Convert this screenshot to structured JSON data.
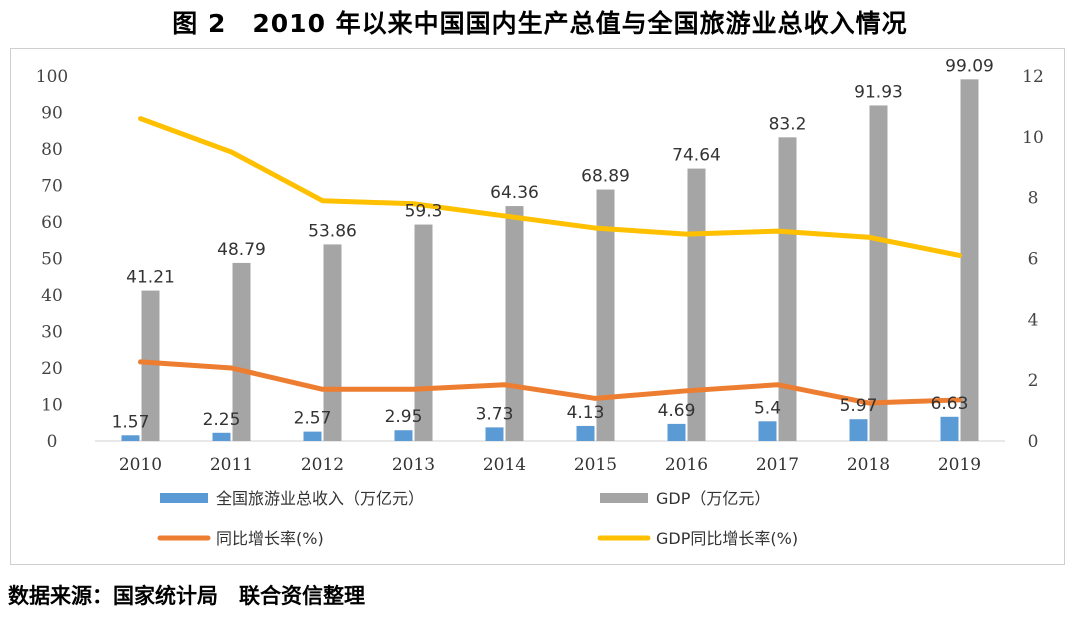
{
  "title": "图 2　2010 年以来中国国内生产总值与全国旅游业总收入情况",
  "source_note": "数据来源：国家统计局　联合资信整理",
  "chart_data": {
    "type": "bar",
    "categories": [
      "2010",
      "2011",
      "2012",
      "2013",
      "2014",
      "2015",
      "2016",
      "2017",
      "2018",
      "2019"
    ],
    "series": [
      {
        "name": "全国旅游业总收入（万亿元）",
        "kind": "bar",
        "axis": "left",
        "color": "#5B9BD5",
        "values": [
          1.57,
          2.25,
          2.57,
          2.95,
          3.73,
          4.13,
          4.69,
          5.4,
          5.97,
          6.63
        ],
        "labels": [
          "1.57",
          "2.25",
          "2.57",
          "2.95",
          "3.73",
          "4.13",
          "4.69",
          "5.4",
          "5.97",
          "6.63"
        ]
      },
      {
        "name": "GDP（万亿元）",
        "kind": "bar",
        "axis": "left",
        "color": "#A5A5A5",
        "values": [
          41.21,
          48.79,
          53.86,
          59.3,
          64.36,
          68.89,
          74.64,
          83.2,
          91.93,
          99.09
        ],
        "labels": [
          "41.21",
          "48.79",
          "53.86",
          "59.3",
          "64.36",
          "68.89",
          "74.64",
          "83.2",
          "91.93",
          "99.09"
        ]
      },
      {
        "name": "同比增长率(%)",
        "kind": "line",
        "axis": "right",
        "color": "#ED7D31",
        "values": [
          2.6,
          2.4,
          1.7,
          1.7,
          1.85,
          1.4,
          1.65,
          1.85,
          1.25,
          1.35
        ]
      },
      {
        "name": "GDP同比增长率(%)",
        "kind": "line",
        "axis": "right",
        "color": "#FFC000",
        "values": [
          10.6,
          9.5,
          7.9,
          7.8,
          7.4,
          7.0,
          6.8,
          6.9,
          6.7,
          6.1
        ]
      }
    ],
    "y_left": {
      "ylim": [
        0,
        100
      ],
      "ticks": [
        "0",
        "10",
        "20",
        "30",
        "40",
        "50",
        "60",
        "70",
        "80",
        "90",
        "100"
      ]
    },
    "y_right": {
      "ylim": [
        0,
        12
      ],
      "ticks": [
        "0",
        "2",
        "4",
        "6",
        "8",
        "10",
        "12"
      ]
    },
    "grid": false,
    "legend_position": "bottom"
  }
}
